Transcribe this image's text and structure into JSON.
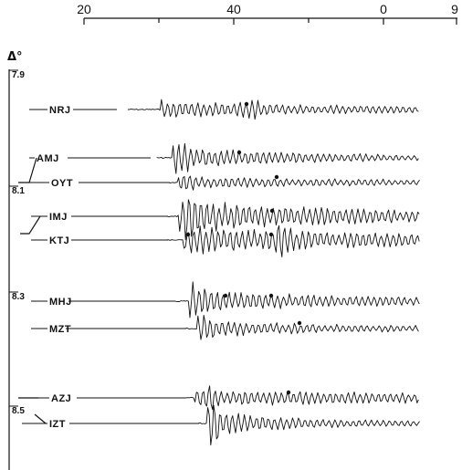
{
  "chart_data": {
    "type": "seismogram-record-section",
    "time_axis": {
      "tick_labels": [
        "20",
        "40",
        "0",
        "9"
      ],
      "minor_ticks_between": 1
    },
    "distance_axis": {
      "symbol": "Δ°",
      "labels": [
        "7.9",
        "8.1",
        "8.3",
        "8.5"
      ]
    },
    "stations": [
      {
        "code": "NRJ",
        "distance_group": "7.9",
        "arrivals": 1
      },
      {
        "code": "AMJ",
        "distance_group": "8.1",
        "arrivals": 1
      },
      {
        "code": "OYT",
        "distance_group": "8.1",
        "arrivals": 1
      },
      {
        "code": "IMJ",
        "distance_group": "8.1",
        "arrivals": 1
      },
      {
        "code": "KTJ",
        "distance_group": "8.1",
        "arrivals": 2
      },
      {
        "code": "MHJ",
        "distance_group": "8.3",
        "arrivals": 2
      },
      {
        "code": "MZT",
        "distance_group": "8.3",
        "arrivals": 1
      },
      {
        "code": "AZJ",
        "distance_group": "8.5",
        "arrivals": 1
      },
      {
        "code": "IZT",
        "distance_group": "8.5",
        "arrivals": 0
      }
    ],
    "grid": false,
    "legend": "none"
  }
}
